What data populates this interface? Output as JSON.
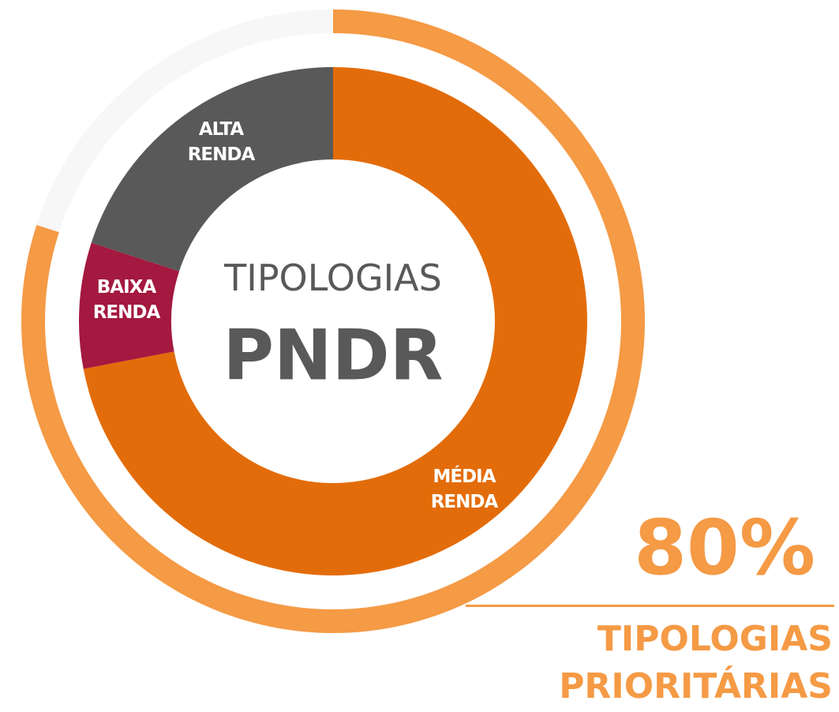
{
  "chart_data": {
    "type": "pie",
    "center_title": "TIPOLOGIAS",
    "center_subtitle": "PNDR",
    "categories": [
      "MÉDIA RENDA",
      "BAIXA RENDA",
      "ALTA RENDA"
    ],
    "values": [
      72,
      8,
      20
    ],
    "colors": [
      "#e36c0a",
      "#a3193f",
      "#595959"
    ],
    "ring": {
      "value": 80,
      "value_label": "80%",
      "label": "TIPOLOGIAS PRIORITÁRIAS",
      "color": "#f59a45"
    }
  }
}
